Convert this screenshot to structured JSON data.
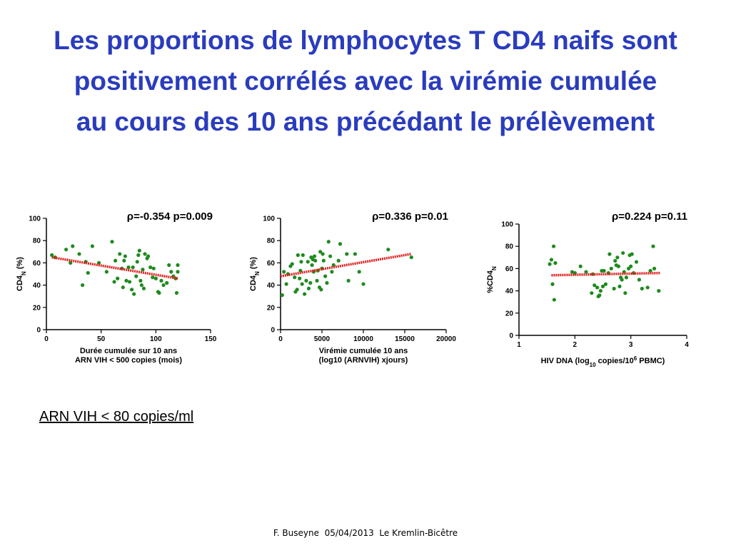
{
  "slide": {
    "title_lines": [
      "Les proportions de lymphocytes T CD4 naifs sont",
      "positivement corrélés avec la virémie cumulée",
      "au cours des 10 ans précédant le prélèvement"
    ],
    "note": "ARN VIH < 80 copies/ml",
    "footer": "F. Buseyne  05/04/2013  Le Kremlin-Bicêtre"
  },
  "colors": {
    "title": "#2a3cbd",
    "points": "#1f8a1f",
    "trend": "#e02020"
  },
  "chart_data": [
    {
      "type": "scatter",
      "annotation": "ρ=-0.354 p=0.009",
      "ylabel": "CD4N (%)",
      "xlabel_lines": [
        "Durée cumulée sur 10 ans",
        "ARN VIH < 500 copies (mois)"
      ],
      "xlim": [
        0,
        150
      ],
      "ylim": [
        0,
        100
      ],
      "xticks": [
        "0",
        "50",
        "100",
        "150"
      ],
      "yticks": [
        "0",
        "20",
        "40",
        "60",
        "80",
        "100"
      ],
      "trend": [
        [
          5,
          65
        ],
        [
          120,
          46
        ]
      ],
      "points": [
        [
          5,
          67
        ],
        [
          8,
          65
        ],
        [
          18,
          72
        ],
        [
          22,
          60
        ],
        [
          24,
          75
        ],
        [
          30,
          68
        ],
        [
          33,
          40
        ],
        [
          36,
          61
        ],
        [
          38,
          51
        ],
        [
          42,
          75
        ],
        [
          48,
          60
        ],
        [
          55,
          52
        ],
        [
          60,
          79
        ],
        [
          62,
          43
        ],
        [
          63,
          62
        ],
        [
          65,
          46
        ],
        [
          67,
          68
        ],
        [
          69,
          55
        ],
        [
          70,
          38
        ],
        [
          71,
          62
        ],
        [
          72,
          66
        ],
        [
          73,
          44
        ],
        [
          75,
          56
        ],
        [
          76,
          43
        ],
        [
          78,
          36
        ],
        [
          79,
          56
        ],
        [
          80,
          32
        ],
        [
          82,
          48
        ],
        [
          83,
          61
        ],
        [
          84,
          67
        ],
        [
          85,
          71
        ],
        [
          86,
          44
        ],
        [
          87,
          40
        ],
        [
          88,
          54
        ],
        [
          89,
          37
        ],
        [
          90,
          68
        ],
        [
          92,
          64
        ],
        [
          93,
          66
        ],
        [
          95,
          56
        ],
        [
          97,
          47
        ],
        [
          98,
          55
        ],
        [
          100,
          46
        ],
        [
          102,
          34
        ],
        [
          103,
          33
        ],
        [
          105,
          44
        ],
        [
          107,
          40
        ],
        [
          110,
          42
        ],
        [
          112,
          58
        ],
        [
          114,
          52
        ],
        [
          116,
          48
        ],
        [
          118,
          46
        ],
        [
          119,
          33
        ],
        [
          120,
          58
        ],
        [
          120,
          52
        ]
      ]
    },
    {
      "type": "scatter",
      "annotation": "ρ=0.336 p=0.01",
      "ylabel": "CD4N (%)",
      "xlabel_lines": [
        "Virémie cumulée 10 ans",
        "(log10 (ARNVIH) xjours)"
      ],
      "xlim": [
        0,
        20000
      ],
      "ylim": [
        0,
        100
      ],
      "xticks": [
        "0",
        "5000",
        "10000",
        "15000",
        "20000"
      ],
      "yticks": [
        "0",
        "20",
        "40",
        "60",
        "80",
        "100"
      ],
      "trend": [
        [
          0,
          48
        ],
        [
          15800,
          68
        ]
      ],
      "points": [
        [
          200,
          31
        ],
        [
          400,
          52
        ],
        [
          700,
          41
        ],
        [
          900,
          50
        ],
        [
          1200,
          57
        ],
        [
          1400,
          59
        ],
        [
          1700,
          47
        ],
        [
          1800,
          34
        ],
        [
          2000,
          36
        ],
        [
          2100,
          67
        ],
        [
          2300,
          46
        ],
        [
          2400,
          53
        ],
        [
          2500,
          61
        ],
        [
          2600,
          41
        ],
        [
          2700,
          67
        ],
        [
          2900,
          32
        ],
        [
          3100,
          44
        ],
        [
          3300,
          61
        ],
        [
          3400,
          37
        ],
        [
          3600,
          42
        ],
        [
          3700,
          65
        ],
        [
          3800,
          58
        ],
        [
          3900,
          63
        ],
        [
          4000,
          52
        ],
        [
          4100,
          66
        ],
        [
          4200,
          62
        ],
        [
          4400,
          44
        ],
        [
          4500,
          53
        ],
        [
          4700,
          38
        ],
        [
          4800,
          70
        ],
        [
          4900,
          36
        ],
        [
          5000,
          55
        ],
        [
          5100,
          68
        ],
        [
          5200,
          62
        ],
        [
          5400,
          48
        ],
        [
          5600,
          42
        ],
        [
          5800,
          79
        ],
        [
          6000,
          66
        ],
        [
          6200,
          52
        ],
        [
          6400,
          58
        ],
        [
          7000,
          62
        ],
        [
          7200,
          77
        ],
        [
          8000,
          68
        ],
        [
          8200,
          44
        ],
        [
          9000,
          68
        ],
        [
          9500,
          52
        ],
        [
          10000,
          41
        ],
        [
          13000,
          72
        ],
        [
          15800,
          65
        ]
      ]
    },
    {
      "type": "scatter",
      "annotation": "ρ=0.224 p=0.11",
      "ylabel": "%CD4N",
      "xlabel_parts": [
        "HIV DNA (log",
        "10",
        " copies/10",
        "6",
        " PBMC)"
      ],
      "xlim": [
        1,
        4
      ],
      "ylim": [
        0,
        100
      ],
      "xticks": [
        "1",
        "2",
        "3",
        "4"
      ],
      "yticks": [
        "0",
        "20",
        "40",
        "60",
        "80",
        "100"
      ],
      "trend": [
        [
          1.58,
          54
        ],
        [
          3.52,
          56
        ]
      ],
      "points": [
        [
          1.55,
          64
        ],
        [
          1.58,
          68
        ],
        [
          1.6,
          46
        ],
        [
          1.62,
          80
        ],
        [
          1.63,
          32
        ],
        [
          1.65,
          65
        ],
        [
          1.95,
          57
        ],
        [
          2.0,
          56
        ],
        [
          2.1,
          62
        ],
        [
          2.2,
          57
        ],
        [
          2.3,
          38
        ],
        [
          2.32,
          55
        ],
        [
          2.35,
          45
        ],
        [
          2.4,
          43
        ],
        [
          2.42,
          35
        ],
        [
          2.44,
          36
        ],
        [
          2.46,
          40
        ],
        [
          2.48,
          58
        ],
        [
          2.5,
          44
        ],
        [
          2.52,
          58
        ],
        [
          2.55,
          46
        ],
        [
          2.6,
          56
        ],
        [
          2.62,
          73
        ],
        [
          2.65,
          60
        ],
        [
          2.7,
          42
        ],
        [
          2.72,
          67
        ],
        [
          2.74,
          63
        ],
        [
          2.76,
          70
        ],
        [
          2.78,
          62
        ],
        [
          2.8,
          44
        ],
        [
          2.82,
          52
        ],
        [
          2.84,
          50
        ],
        [
          2.86,
          74
        ],
        [
          2.88,
          57
        ],
        [
          2.9,
          38
        ],
        [
          2.92,
          52
        ],
        [
          2.96,
          60
        ],
        [
          2.98,
          72
        ],
        [
          3.0,
          62
        ],
        [
          3.02,
          73
        ],
        [
          3.05,
          56
        ],
        [
          3.1,
          66
        ],
        [
          3.15,
          50
        ],
        [
          3.2,
          42
        ],
        [
          3.3,
          43
        ],
        [
          3.35,
          58
        ],
        [
          3.4,
          80
        ],
        [
          3.42,
          60
        ],
        [
          3.5,
          40
        ]
      ]
    }
  ]
}
